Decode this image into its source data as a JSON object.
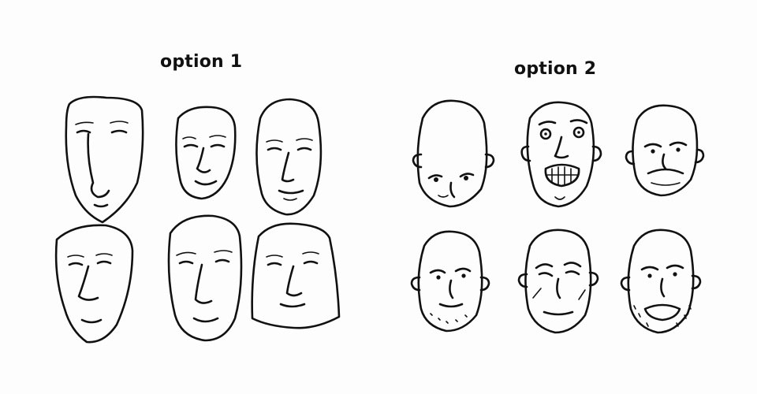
{
  "groups": [
    {
      "label": "option 1",
      "face_count": 6
    },
    {
      "label": "option 2",
      "face_count": 6
    }
  ],
  "colors": {
    "ink": "#111111",
    "paper": "#fdfdfd"
  }
}
